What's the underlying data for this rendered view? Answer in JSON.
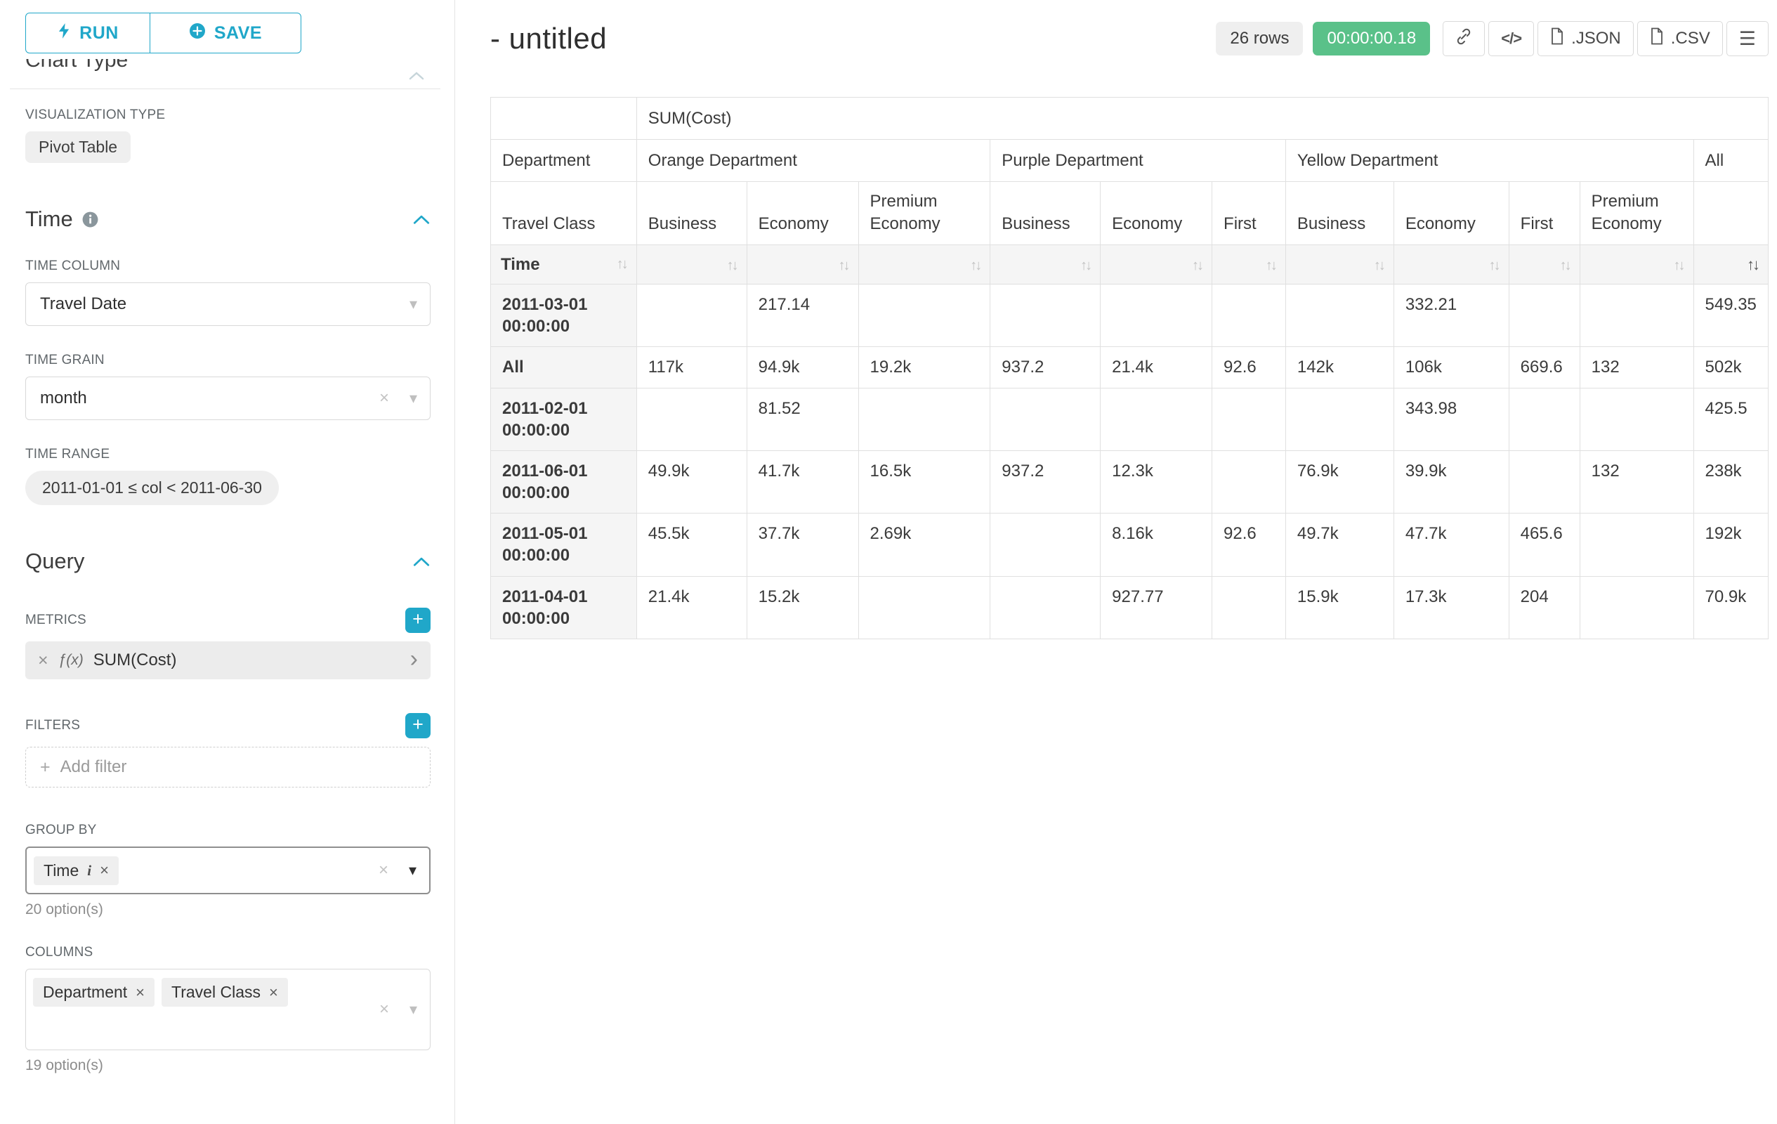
{
  "colors": {
    "accent": "#20a7c9",
    "timer_green": "#5ac189",
    "chip_gray": "#efefef",
    "table_header_gray": "#f5f5f5"
  },
  "sidebar": {
    "run_label": "RUN",
    "save_label": "SAVE",
    "clipped_heading": "Chart Type",
    "visualization": {
      "label": "VISUALIZATION TYPE",
      "value": "Pivot Table"
    },
    "time": {
      "title": "Time",
      "column_label": "TIME COLUMN",
      "column_value": "Travel Date",
      "grain_label": "TIME GRAIN",
      "grain_value": "month",
      "range_label": "TIME RANGE",
      "range_value": "2011-01-01 ≤ col < 2011-06-30"
    },
    "query": {
      "title": "Query",
      "metrics_label": "METRICS",
      "metric_fx": "ƒ(x)",
      "metric_value": "SUM(Cost)",
      "filters_label": "FILTERS",
      "add_filter_label": "Add filter",
      "group_by_label": "GROUP BY",
      "group_by_chips": [
        "Time"
      ],
      "group_by_hint": "20 option(s)",
      "columns_label": "COLUMNS",
      "columns_chips": [
        "Department",
        "Travel Class"
      ],
      "columns_hint": "19 option(s)"
    }
  },
  "header": {
    "title": "- untitled",
    "row_count": "26 rows",
    "timer": "00:00:00.18",
    "buttons": {
      "json": ".JSON",
      "csv": ".CSV"
    },
    "icons": {
      "code": "</>",
      "menu": "☰"
    }
  },
  "chart_data": {
    "type": "table",
    "metric": "SUM(Cost)",
    "column_dimensions": [
      "Department",
      "Travel Class"
    ],
    "row_dimension": "Time",
    "column_groups": [
      {
        "label": "Orange Department",
        "columns": [
          "Business",
          "Economy",
          "Premium Economy"
        ]
      },
      {
        "label": "Purple Department",
        "columns": [
          "Business",
          "Economy",
          "First"
        ]
      },
      {
        "label": "Yellow Department",
        "columns": [
          "Business",
          "Economy",
          "First",
          "Premium Economy"
        ]
      },
      {
        "label": "All",
        "columns": [
          ""
        ]
      }
    ],
    "rows": [
      {
        "label": "2011-03-01 00:00:00",
        "values": [
          "",
          "217.14",
          "",
          "",
          "",
          "",
          "",
          "332.21",
          "",
          "",
          "549.35"
        ]
      },
      {
        "label": "All",
        "values": [
          "117k",
          "94.9k",
          "19.2k",
          "937.2",
          "21.4k",
          "92.6",
          "142k",
          "106k",
          "669.6",
          "132",
          "502k"
        ]
      },
      {
        "label": "2011-02-01 00:00:00",
        "values": [
          "",
          "81.52",
          "",
          "",
          "",
          "",
          "",
          "343.98",
          "",
          "",
          "425.5"
        ]
      },
      {
        "label": "2011-06-01 00:00:00",
        "values": [
          "49.9k",
          "41.7k",
          "16.5k",
          "937.2",
          "12.3k",
          "",
          "76.9k",
          "39.9k",
          "",
          "132",
          "238k"
        ]
      },
      {
        "label": "2011-05-01 00:00:00",
        "values": [
          "45.5k",
          "37.7k",
          "2.69k",
          "",
          "8.16k",
          "92.6",
          "49.7k",
          "47.7k",
          "465.6",
          "",
          "192k"
        ]
      },
      {
        "label": "2011-04-01 00:00:00",
        "values": [
          "21.4k",
          "15.2k",
          "",
          "",
          "927.77",
          "",
          "15.9k",
          "17.3k",
          "204",
          "",
          "70.9k"
        ]
      }
    ]
  }
}
